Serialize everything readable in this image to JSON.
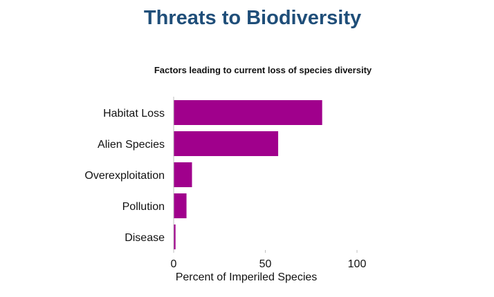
{
  "page": {
    "title": "Threats to Biodiversity"
  },
  "chart_data": {
    "type": "bar",
    "orientation": "horizontal",
    "title": "",
    "subtitle": "Factors leading to current loss of species diversity",
    "categories": [
      "Habitat Loss",
      "Alien Species",
      "Overexploitation",
      "Pollution",
      "Disease"
    ],
    "values": [
      81,
      57,
      10,
      7,
      1
    ],
    "xlabel": "Percent of Imperiled Species",
    "ylabel": "",
    "xlim": [
      0,
      100
    ],
    "xticks": [
      "0",
      "50",
      "100"
    ],
    "bar_color": "#a0008c",
    "grid": false,
    "legend": "none"
  }
}
